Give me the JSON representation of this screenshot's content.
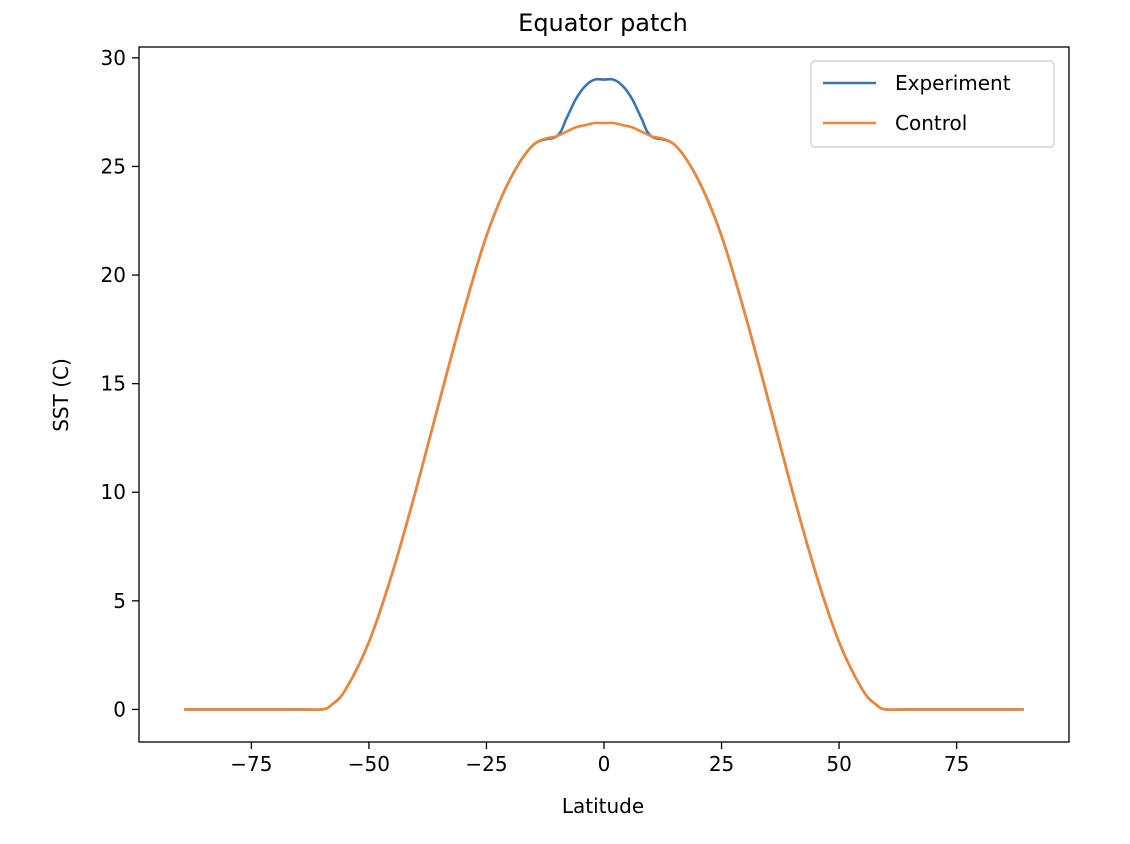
{
  "chart_data": {
    "type": "line",
    "title": "Equator patch",
    "xlabel": "Latitude",
    "ylabel": "SST (C)",
    "xlim": [
      -98.9,
      98.9
    ],
    "ylim": [
      -1.5,
      30.5
    ],
    "xticks": [
      -75,
      -50,
      -25,
      0,
      25,
      50,
      75
    ],
    "yticks": [
      0,
      5,
      10,
      15,
      20,
      25,
      30
    ],
    "xtick_labels": [
      "−75",
      "−50",
      "−25",
      "0",
      "25",
      "50",
      "75"
    ],
    "ytick_labels": [
      "0",
      "5",
      "10",
      "15",
      "20",
      "25",
      "30"
    ],
    "grid": false,
    "legend_position": "top-right",
    "x": [
      -89,
      -85,
      -80,
      -75,
      -70,
      -65,
      -60,
      -58,
      -55,
      -50,
      -45,
      -40,
      -35,
      -30,
      -25,
      -20,
      -15,
      -10,
      -8,
      -6,
      -4,
      -2,
      0,
      2,
      4,
      6,
      8,
      10,
      15,
      20,
      25,
      30,
      35,
      40,
      45,
      50,
      55,
      58,
      60,
      65,
      70,
      75,
      80,
      85,
      89
    ],
    "series": [
      {
        "name": "Experiment",
        "color": "#3b75af",
        "values": [
          0,
          0,
          0,
          0,
          0,
          0,
          0,
          0.2,
          0.9,
          3.1,
          6.3,
          10.1,
          14.2,
          18.2,
          21.8,
          24.4,
          26.0,
          26.4,
          27.2,
          28.1,
          28.7,
          29.0,
          29.0,
          29.0,
          28.7,
          28.1,
          27.2,
          26.4,
          26.0,
          24.4,
          21.8,
          18.2,
          14.2,
          10.1,
          6.3,
          3.1,
          0.9,
          0.2,
          0,
          0,
          0,
          0,
          0,
          0,
          0
        ]
      },
      {
        "name": "Control",
        "color": "#ef8636",
        "values": [
          0,
          0,
          0,
          0,
          0,
          0,
          0,
          0.2,
          0.9,
          3.1,
          6.3,
          10.1,
          14.2,
          18.2,
          21.8,
          24.4,
          26.0,
          26.4,
          26.6,
          26.8,
          26.9,
          27.0,
          27.0,
          27.0,
          26.9,
          26.8,
          26.6,
          26.4,
          26.0,
          24.4,
          21.8,
          18.2,
          14.2,
          10.1,
          6.3,
          3.1,
          0.9,
          0.2,
          0,
          0,
          0,
          0,
          0,
          0,
          0
        ]
      }
    ]
  }
}
